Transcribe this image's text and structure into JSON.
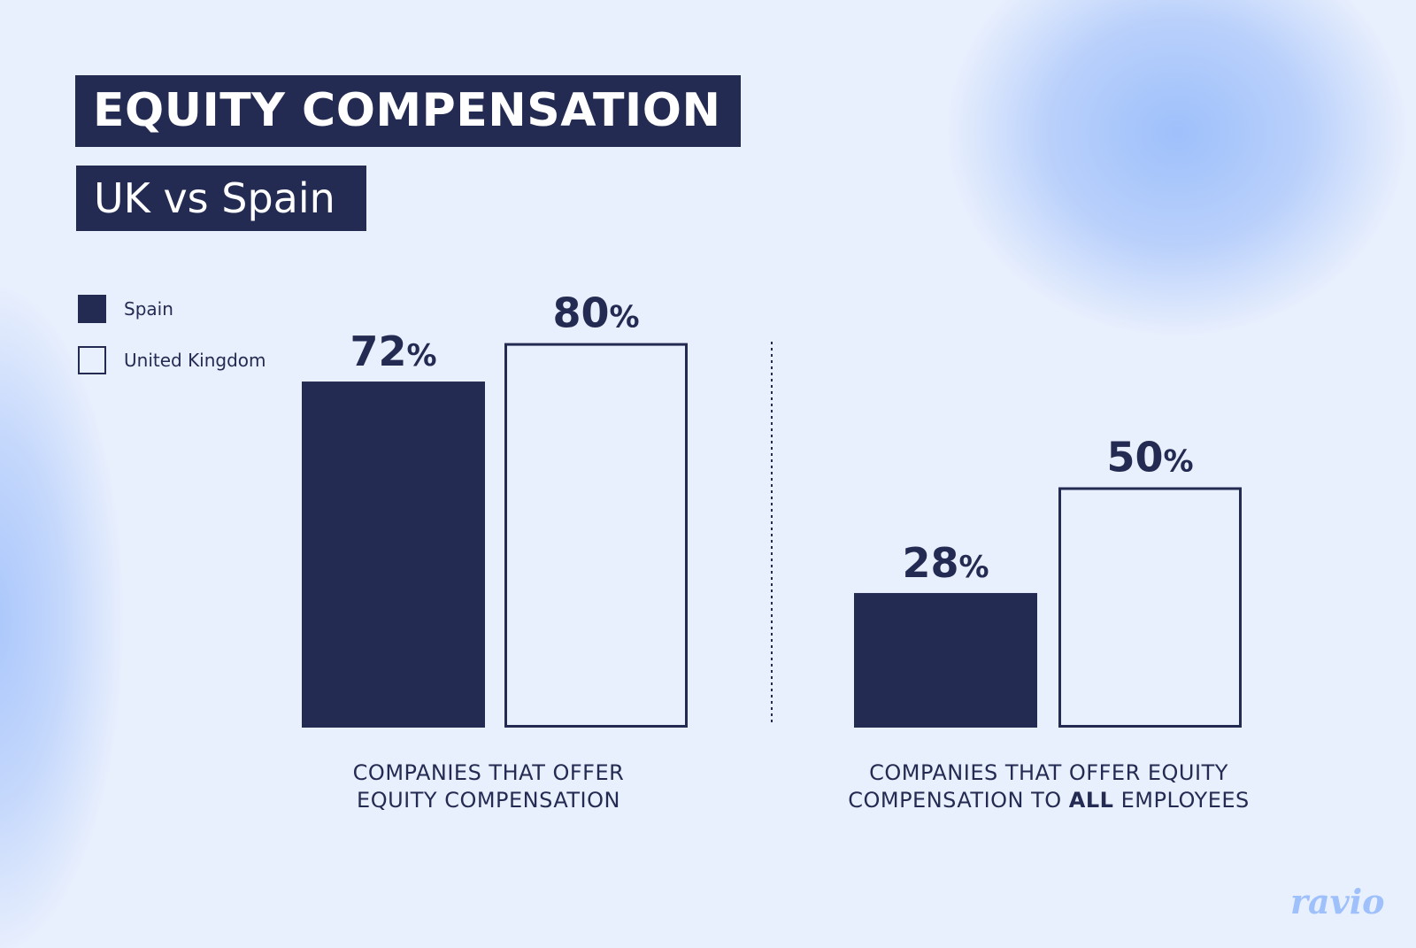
{
  "header": {
    "title": "EQUITY COMPENSATION",
    "subtitle": "UK vs Spain"
  },
  "legend": [
    {
      "label": "Spain",
      "style": "filled"
    },
    {
      "label": "United Kingdom",
      "style": "outline"
    }
  ],
  "colors": {
    "spain": "#242b52",
    "uk": "#e8effd",
    "outline": "#242b52"
  },
  "logo": "ravio",
  "chart_data": {
    "type": "bar",
    "categories": [
      [
        "COMPANIES THAT OFFER",
        "EQUITY COMPENSATION"
      ],
      [
        "COMPANIES THAT OFFER EQUITY",
        "COMPENSATION TO ALL EMPLOYEES"
      ]
    ],
    "series": [
      {
        "name": "Spain",
        "values": [
          72,
          28
        ],
        "labels": [
          "72%",
          "28%"
        ]
      },
      {
        "name": "United Kingdom",
        "values": [
          80,
          50
        ],
        "labels": [
          "80%",
          "50%"
        ]
      }
    ],
    "ylim": [
      0,
      100
    ],
    "grid": false,
    "legend_position": "top-left"
  }
}
